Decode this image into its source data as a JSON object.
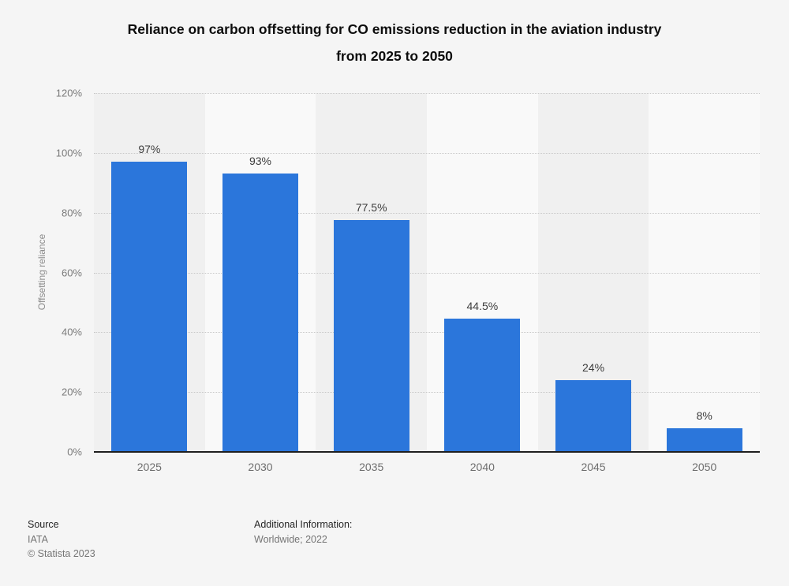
{
  "chart_data": {
    "type": "bar",
    "title": "Reliance on carbon offsetting for CO emissions reduction in the aviation industry from 2025 to 2050",
    "title_lines": [
      "Reliance on carbon offsetting for CO emissions reduction in the aviation industry",
      "from 2025 to 2050"
    ],
    "categories": [
      "2025",
      "2030",
      "2035",
      "2040",
      "2045",
      "2050"
    ],
    "values": [
      97,
      93,
      77.5,
      44.5,
      24,
      8
    ],
    "value_labels": [
      "97%",
      "93%",
      "77.5%",
      "44.5%",
      "24%",
      "8%"
    ],
    "xlabel": "",
    "ylabel": "Offsetting reliance",
    "ylim": [
      0,
      120
    ],
    "ytick_step": 20,
    "ytick_labels": [
      "0%",
      "20%",
      "40%",
      "60%",
      "80%",
      "100%",
      "120%"
    ],
    "grid": "horizontal-dotted",
    "legend_position": "none"
  },
  "footer": {
    "source_label": "Source",
    "source_value": "IATA",
    "copyright": "© Statista 2023",
    "additional_info_label": "Additional Information:",
    "additional_info_value": "Worldwide; 2022"
  },
  "colors": {
    "page_background": "#f5f5f5",
    "band_dark": "#f0f0f0",
    "band_light": "#f9f9f9",
    "bar": "#2b76db",
    "grid": "#c9c9c9",
    "axis_line": "#1f1f1f",
    "title_text": "#0d0d0d",
    "tick_text": "#7b7b7b",
    "value_label_text": "#3d3d3d"
  }
}
